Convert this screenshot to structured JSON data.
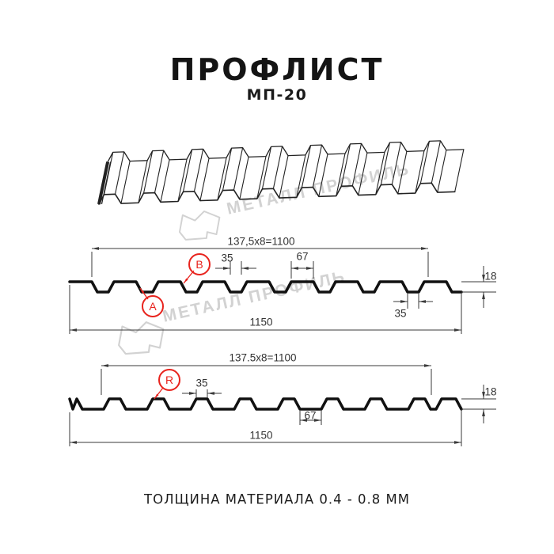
{
  "title": "ПРОФЛИСТ",
  "subtitle": "МП-20",
  "watermark": {
    "text": "МЕТАЛЛ ПРОФИЛЬ"
  },
  "caption": "ТОЛЩИНА МАТЕРИАЛА 0.4 - 0.8 ММ",
  "drawing1": {
    "working_width": "137,5x8=1100",
    "rib_width_top": "35",
    "flat_width": "67",
    "profile_height": "18",
    "rib_width_bottom": "35",
    "total_width": "1150",
    "label_a": "A",
    "label_b": "B"
  },
  "drawing2": {
    "working_width": "137.5x8=1100",
    "rib_width_top": "35",
    "flat_width": "67",
    "profile_height": "18",
    "total_width": "1150",
    "label_r": "R"
  },
  "colors": {
    "accent_red": "#e8231d",
    "profile_line": "#111111",
    "dimension_line": "#3a3a3a",
    "watermark": "#d2d2d2"
  }
}
